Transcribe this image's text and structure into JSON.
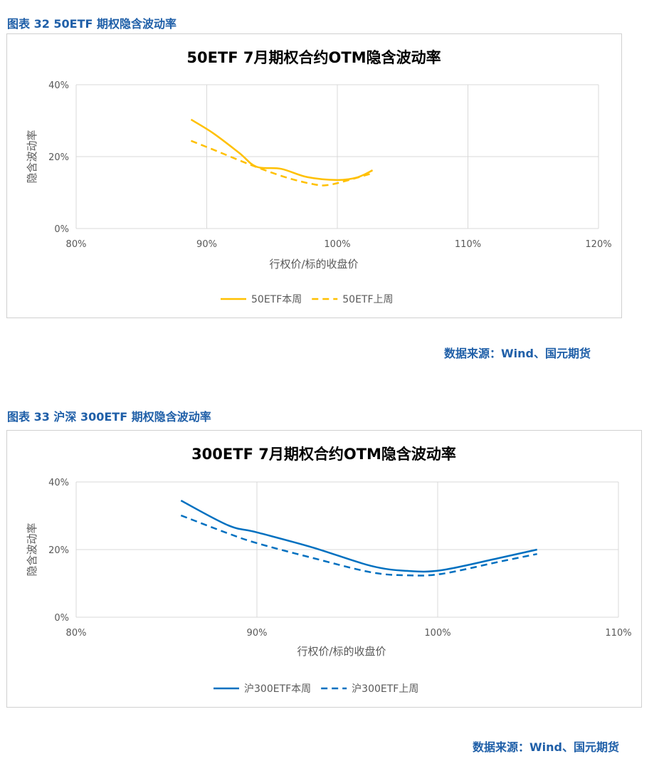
{
  "figures": [
    {
      "caption": "图表 32  50ETF 期权隐含波动率",
      "source": "数据来源：Wind、国元期货"
    },
    {
      "caption": "图表 33  沪深 300ETF 期权隐含波动率",
      "source": "数据来源：Wind、国元期货"
    }
  ],
  "chart_data": [
    {
      "type": "line",
      "title": "50ETF  7月期权合约OTM隐含波动率",
      "xlabel": "行权价/标的收盘价",
      "ylabel": "隐含波动率",
      "xlim": [
        80,
        120
      ],
      "ylim": [
        0,
        40
      ],
      "xticks": [
        "80%",
        "90%",
        "100%",
        "110%",
        "120%"
      ],
      "yticks": [
        "0%",
        "20%",
        "40%"
      ],
      "grid": true,
      "legend": "bottom",
      "series": [
        {
          "name": "50ETF本周",
          "color": "#ffc000",
          "dash": false,
          "x": [
            88.8,
            90.5,
            92.5,
            93.8,
            95.7,
            97.7,
            100,
            101.5,
            102.7
          ],
          "y": [
            30.3,
            26.5,
            21,
            17.2,
            16.6,
            14.3,
            13.5,
            14.2,
            16.2
          ]
        },
        {
          "name": "50ETF上周",
          "color": "#ffc000",
          "dash": true,
          "x": [
            88.8,
            90.6,
            93.3,
            96,
            98.2,
            99.3,
            100.9,
            102.7
          ],
          "y": [
            24.4,
            21.8,
            17.8,
            14.3,
            12.3,
            12.1,
            13.5,
            15.4
          ]
        }
      ]
    },
    {
      "type": "line",
      "title": "300ETF  7月期权合约OTM隐含波动率",
      "xlabel": "行权价/标的收盘价",
      "ylabel": "隐含波动率",
      "xlim": [
        80,
        110
      ],
      "ylim": [
        0,
        40
      ],
      "xticks": [
        "80%",
        "90%",
        "100%",
        "110%"
      ],
      "yticks": [
        "0%",
        "20%",
        "40%"
      ],
      "grid": true,
      "legend": "bottom",
      "series": [
        {
          "name": "沪300ETF本周",
          "color": "#0070c0",
          "dash": false,
          "x": [
            85.8,
            88.4,
            90,
            93.1,
            96.3,
            98.3,
            100.2,
            103.4,
            105.5
          ],
          "y": [
            34.5,
            27.2,
            25.1,
            20.6,
            15.2,
            13.7,
            13.9,
            17.5,
            20
          ]
        },
        {
          "name": "沪300ETF上周",
          "color": "#0070c0",
          "dash": true,
          "x": [
            85.8,
            88.4,
            90,
            93.1,
            96.3,
            98.3,
            100.2,
            103.4,
            105.5
          ],
          "y": [
            30.1,
            24.8,
            21.9,
            17.5,
            13.3,
            12.4,
            12.8,
            16.4,
            18.7
          ]
        }
      ]
    }
  ]
}
